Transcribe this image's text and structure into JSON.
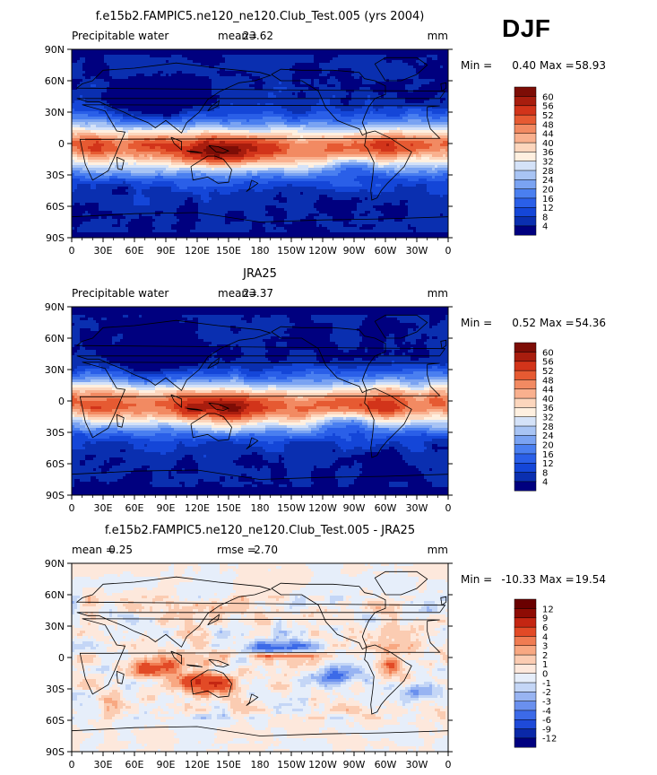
{
  "season": "DJF",
  "chart_data": [
    {
      "type": "heatmap",
      "title": "f.e15b2.FAMPIC5.ne120_ne120.Club_Test.005 (yrs 2004)",
      "variable": "Precipitable water",
      "units": "mm",
      "stats": [
        {
          "label": "mean=",
          "value": "23.62"
        }
      ],
      "min_label": "Min =",
      "min_value": "0.40",
      "max_label": "Max =",
      "max_value": "58.93",
      "mean_value": 23.62,
      "colorbar": {
        "levels": [
          "4",
          "8",
          "12",
          "16",
          "20",
          "24",
          "28",
          "32",
          "36",
          "40",
          "44",
          "48",
          "52",
          "56",
          "60"
        ],
        "colors": [
          "#00007f",
          "#0a2fb0",
          "#1446d8",
          "#2a5fe8",
          "#4a7ff0",
          "#7aa3f2",
          "#a8c4f4",
          "#d4e2f8",
          "#fff0e0",
          "#fcd6bd",
          "#f9b08e",
          "#f28a62",
          "#e65a32",
          "#d2341a",
          "#a81d0e",
          "#7d0d06"
        ],
        "bins": 16
      },
      "x_ticks": [
        "0",
        "30E",
        "60E",
        "90E",
        "120E",
        "150E",
        "180",
        "150W",
        "120W",
        "90W",
        "60W",
        "30W",
        "0"
      ],
      "y_ticks": [
        "90N",
        "60N",
        "30N",
        "0",
        "30S",
        "60S",
        "90S"
      ],
      "xlim": [
        0,
        360
      ],
      "ylim": [
        -90,
        90
      ]
    },
    {
      "type": "heatmap",
      "title": "JRA25",
      "variable": "Precipitable water",
      "units": "mm",
      "stats": [
        {
          "label": "mean=",
          "value": "23.37"
        }
      ],
      "min_label": "Min =",
      "min_value": "0.52",
      "max_label": "Max =",
      "max_value": "54.36",
      "mean_value": 23.37,
      "colorbar": {
        "levels": [
          "4",
          "8",
          "12",
          "16",
          "20",
          "24",
          "28",
          "32",
          "36",
          "40",
          "44",
          "48",
          "52",
          "56",
          "60"
        ],
        "colors": [
          "#00007f",
          "#0a2fb0",
          "#1446d8",
          "#2a5fe8",
          "#4a7ff0",
          "#7aa3f2",
          "#a8c4f4",
          "#d4e2f8",
          "#fff0e0",
          "#fcd6bd",
          "#f9b08e",
          "#f28a62",
          "#e65a32",
          "#d2341a",
          "#a81d0e",
          "#7d0d06"
        ],
        "bins": 16
      },
      "x_ticks": [
        "0",
        "30E",
        "60E",
        "90E",
        "120E",
        "150E",
        "180",
        "150W",
        "120W",
        "90W",
        "60W",
        "30W",
        "0"
      ],
      "y_ticks": [
        "90N",
        "60N",
        "30N",
        "0",
        "30S",
        "60S",
        "90S"
      ],
      "xlim": [
        0,
        360
      ],
      "ylim": [
        -90,
        90
      ]
    },
    {
      "type": "heatmap",
      "title": "f.e15b2.FAMPIC5.ne120_ne120.Club_Test.005 - JRA25",
      "variable": "",
      "units": "mm",
      "stats": [
        {
          "label": "mean =",
          "value": "0.25"
        },
        {
          "label": "rmse =",
          "value": "2.70"
        }
      ],
      "min_label": "Min =",
      "min_value": "-10.33",
      "max_label": "Max =",
      "max_value": "19.54",
      "mean_value": 0.25,
      "colorbar": {
        "levels": [
          "-12",
          "-9",
          "-6",
          "-4",
          "-3",
          "-2",
          "-1",
          "0",
          "1",
          "2",
          "3",
          "4",
          "6",
          "9",
          "12"
        ],
        "colors": [
          "#00007f",
          "#0a28a8",
          "#1e4ad8",
          "#3c6ae8",
          "#6a90ee",
          "#98b4f2",
          "#c4d6f6",
          "#e6eefa",
          "#fde8dc",
          "#fbccb2",
          "#f8a882",
          "#f07c52",
          "#e24a26",
          "#c42612",
          "#8e0c04",
          "#6a0000"
        ],
        "bins": 16
      },
      "x_ticks": [
        "0",
        "30E",
        "60E",
        "90E",
        "120E",
        "150E",
        "180",
        "150W",
        "120W",
        "90W",
        "60W",
        "30W",
        "0"
      ],
      "y_ticks": [
        "90N",
        "60N",
        "30N",
        "0",
        "30S",
        "60S",
        "90S"
      ],
      "xlim": [
        0,
        360
      ],
      "ylim": [
        -90,
        90
      ]
    }
  ]
}
